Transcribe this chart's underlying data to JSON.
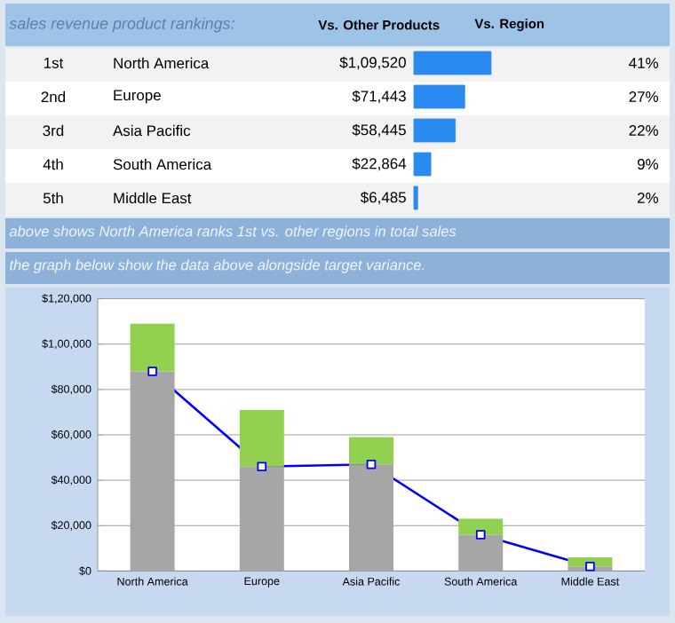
{
  "chart_data": [
    {
      "type": "bar",
      "orientation": "horizontal",
      "title": "sales revenue product rankings:",
      "categories": [
        "North America",
        "Europe",
        "Asia Pacific",
        "South America",
        "Middle East"
      ],
      "values": [
        41,
        27,
        22,
        9,
        2
      ],
      "value_labels": [
        "41%",
        "27%",
        "22%",
        "9%",
        "2%"
      ],
      "color": "#2a8af0",
      "tick_labels": "y",
      "annotations": [
        "Vs. Other Products",
        "Vs. Region",
        "1st",
        "$1,09,520",
        "2nd",
        "$71,443",
        "3rd",
        "$58,445",
        "4th",
        "$22,864",
        "5th",
        "$6,485"
      ]
    },
    {
      "type": "bar",
      "stacked": true,
      "categories": [
        "North America",
        "Europe",
        "Asia Pacific",
        "South America",
        "Middle East"
      ],
      "series": [
        {
          "type": "bar",
          "color": "#a6a6a6",
          "values": [
            88000,
            46000,
            47000,
            16000,
            2000
          ]
        },
        {
          "type": "bar",
          "color": "#92d050",
          "values": [
            21000,
            25000,
            12000,
            7000,
            4000
          ]
        },
        {
          "type": "line",
          "color": "#0000ff",
          "marker": "square",
          "values": [
            88000,
            46000,
            47000,
            16000,
            2000
          ]
        }
      ],
      "ylim": [
        0,
        120000
      ],
      "yticks": [
        {
          "value": 0,
          "label": "$0"
        },
        {
          "value": 20000,
          "label": "$20,000"
        },
        {
          "value": 40000,
          "label": "$40,000"
        },
        {
          "value": 60000,
          "label": "$60,000"
        },
        {
          "value": 80000,
          "label": "$80,000"
        },
        {
          "value": 100000,
          "label": "$1,00,000"
        },
        {
          "value": 120000,
          "label": "$1,20,000"
        }
      ],
      "grid": "y",
      "annotations": [
        "above shows North America ranks 1st vs. other regions in total sales",
        "the graph below show the data above alongside target variance."
      ]
    }
  ]
}
